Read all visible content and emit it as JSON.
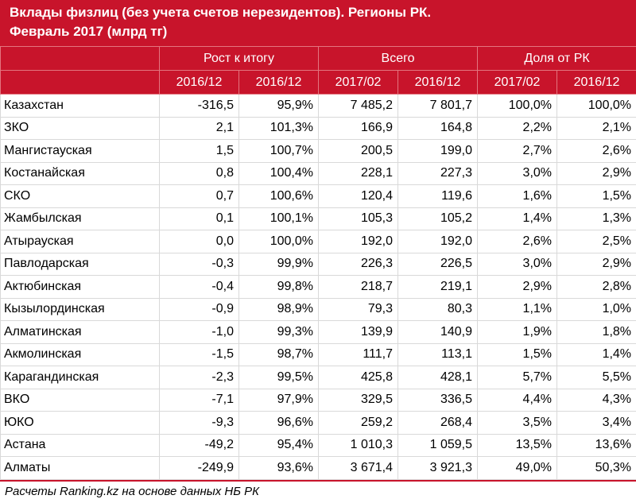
{
  "title": {
    "line1": "Вклады физлиц (без учета счетов нерезидентов). Регионы РК.",
    "line2": "Февраль 2017 (млрд тг)"
  },
  "header": {
    "groups": [
      "Рост к итогу",
      "Всего",
      "Доля от РК"
    ],
    "subcols": [
      "2016/12",
      "2016/12",
      "2017/02",
      "2016/12",
      "2017/02",
      "2016/12"
    ]
  },
  "rows": [
    [
      "Казахстан",
      "-316,5",
      "95,9%",
      "7 485,2",
      "7 801,7",
      "100,0%",
      "100,0%"
    ],
    [
      "ЗКО",
      "2,1",
      "101,3%",
      "166,9",
      "164,8",
      "2,2%",
      "2,1%"
    ],
    [
      "Мангистауская",
      "1,5",
      "100,7%",
      "200,5",
      "199,0",
      "2,7%",
      "2,6%"
    ],
    [
      "Костанайская",
      "0,8",
      "100,4%",
      "228,1",
      "227,3",
      "3,0%",
      "2,9%"
    ],
    [
      "СКО",
      "0,7",
      "100,6%",
      "120,4",
      "119,6",
      "1,6%",
      "1,5%"
    ],
    [
      "Жамбылская",
      "0,1",
      "100,1%",
      "105,3",
      "105,2",
      "1,4%",
      "1,3%"
    ],
    [
      "Атырауская",
      "0,0",
      "100,0%",
      "192,0",
      "192,0",
      "2,6%",
      "2,5%"
    ],
    [
      "Павлодарская",
      "-0,3",
      "99,9%",
      "226,3",
      "226,5",
      "3,0%",
      "2,9%"
    ],
    [
      "Актюбинская",
      "-0,4",
      "99,8%",
      "218,7",
      "219,1",
      "2,9%",
      "2,8%"
    ],
    [
      "Кызылординская",
      "-0,9",
      "98,9%",
      "79,3",
      "80,3",
      "1,1%",
      "1,0%"
    ],
    [
      "Алматинская",
      "-1,0",
      "99,3%",
      "139,9",
      "140,9",
      "1,9%",
      "1,8%"
    ],
    [
      "Акмолинская",
      "-1,5",
      "98,7%",
      "111,7",
      "113,1",
      "1,5%",
      "1,4%"
    ],
    [
      "Карагандинская",
      "-2,3",
      "99,5%",
      "425,8",
      "428,1",
      "5,7%",
      "5,5%"
    ],
    [
      "ВКО",
      "-7,1",
      "97,9%",
      "329,5",
      "336,5",
      "4,4%",
      "4,3%"
    ],
    [
      "ЮКО",
      "-9,3",
      "96,6%",
      "259,2",
      "268,4",
      "3,5%",
      "3,4%"
    ],
    [
      "Астана",
      "-49,2",
      "95,4%",
      "1 010,3",
      "1 059,5",
      "13,5%",
      "13,6%"
    ],
    [
      "Алматы",
      "-249,9",
      "93,6%",
      "3 671,4",
      "3 921,3",
      "49,0%",
      "50,3%"
    ]
  ],
  "footer": "Расчеты Ranking.kz на основе данных НБ РК"
}
